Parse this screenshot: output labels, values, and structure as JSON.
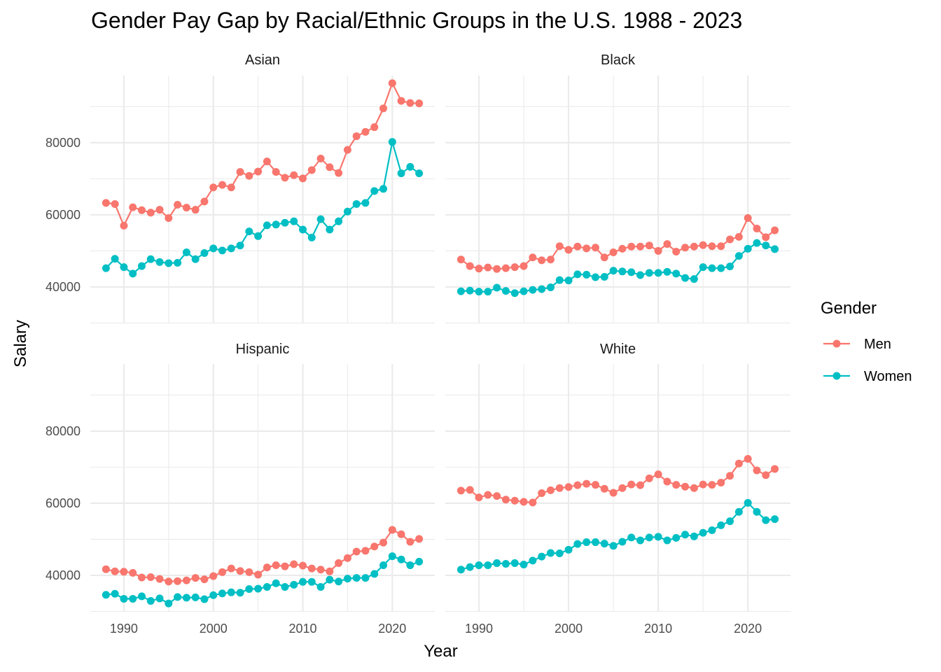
{
  "chart_data": {
    "type": "line",
    "title": "Gender Pay Gap by Racial/Ethnic Groups in the U.S. 1988 - 2023",
    "xlabel": "Year",
    "ylabel": "Salary",
    "xlim": [
      1986.25,
      2024.75
    ],
    "ylim": [
      29900,
      98600
    ],
    "x_ticks": [
      1990,
      2000,
      2010,
      2020
    ],
    "x_tick_labels": [
      "1990",
      "2000",
      "2010",
      "2020"
    ],
    "y_ticks": [
      40000,
      60000,
      80000
    ],
    "y_tick_labels": [
      "40000",
      "60000",
      "80000"
    ],
    "y_minor_ticks": [
      30000,
      50000,
      70000,
      90000
    ],
    "x_minor_ticks": [
      1985,
      1995,
      2005,
      2015
    ],
    "grid": true,
    "facets_layout": "2x2",
    "legend": {
      "title": "Gender",
      "position": "right",
      "entries": [
        {
          "label": "Men",
          "color": "#F8766D"
        },
        {
          "label": "Women",
          "color": "#00BFC4"
        }
      ]
    },
    "x": [
      1988,
      1989,
      1990,
      1991,
      1992,
      1993,
      1994,
      1995,
      1996,
      1997,
      1998,
      1999,
      2000,
      2001,
      2002,
      2003,
      2004,
      2005,
      2006,
      2007,
      2008,
      2009,
      2010,
      2011,
      2012,
      2013,
      2014,
      2015,
      2016,
      2017,
      2018,
      2019,
      2020,
      2021,
      2022,
      2023
    ],
    "facets": [
      {
        "label": "Asian",
        "series": [
          {
            "name": "Men",
            "color": "#F8766D",
            "values": [
              63300,
              63000,
              57000,
              62100,
              61300,
              60600,
              61400,
              59100,
              62800,
              62000,
              61400,
              63700,
              67600,
              68300,
              67600,
              71900,
              70800,
              72000,
              74800,
              71900,
              70300,
              71000,
              70100,
              72400,
              75600,
              73200,
              71600,
              78000,
              81800,
              83000,
              84300,
              89500,
              96500,
              91600,
              91000,
              90900
            ]
          },
          {
            "name": "Women",
            "color": "#00BFC4",
            "values": [
              45200,
              47800,
              45500,
              43700,
              45800,
              47700,
              46900,
              46600,
              46700,
              49600,
              47700,
              49400,
              50700,
              50100,
              50700,
              51500,
              55400,
              54100,
              57100,
              57300,
              57800,
              58200,
              55900,
              53700,
              58800,
              55900,
              58200,
              60900,
              63000,
              63300,
              66600,
              67200,
              80200,
              71500,
              73300,
              71500
            ]
          }
        ]
      },
      {
        "label": "Black",
        "series": [
          {
            "name": "Men",
            "color": "#F8766D",
            "values": [
              47600,
              45800,
              45100,
              45400,
              45000,
              45200,
              45500,
              45800,
              48200,
              47400,
              47600,
              51300,
              50300,
              51200,
              50700,
              50900,
              48200,
              49600,
              50600,
              51200,
              51200,
              51500,
              50000,
              51900,
              49800,
              50900,
              51200,
              51600,
              51300,
              51300,
              53200,
              53900,
              59100,
              56200,
              53800,
              55700
            ]
          },
          {
            "name": "Women",
            "color": "#00BFC4",
            "values": [
              38800,
              39000,
              38700,
              38700,
              39800,
              38900,
              38300,
              38800,
              39200,
              39400,
              39900,
              41900,
              41800,
              43500,
              43400,
              42700,
              42800,
              44500,
              44300,
              44100,
              43300,
              43900,
              43900,
              44200,
              43700,
              42500,
              42200,
              45500,
              45200,
              45200,
              45700,
              48600,
              50600,
              52200,
              51500,
              50500
            ]
          }
        ]
      },
      {
        "label": "Hispanic",
        "series": [
          {
            "name": "Men",
            "color": "#F8766D",
            "values": [
              41700,
              41100,
              41000,
              40700,
              39400,
              39500,
              39000,
              38300,
              38400,
              38600,
              39300,
              38900,
              39800,
              40900,
              41900,
              41200,
              40900,
              40200,
              42200,
              42800,
              42500,
              43100,
              42700,
              41900,
              41600,
              41100,
              43400,
              44800,
              46600,
              46800,
              48000,
              49100,
              52600,
              51400,
              49300,
              50100
            ]
          },
          {
            "name": "Women",
            "color": "#00BFC4",
            "values": [
              34600,
              34900,
              33500,
              33500,
              34200,
              32900,
              33600,
              32200,
              34000,
              33800,
              33900,
              33400,
              34500,
              35000,
              35300,
              35200,
              36200,
              36300,
              36800,
              37800,
              36800,
              37400,
              38200,
              38200,
              36800,
              38800,
              38300,
              39100,
              39300,
              39300,
              40400,
              42800,
              45300,
              44400,
              42800,
              43800
            ]
          }
        ]
      },
      {
        "label": "White",
        "series": [
          {
            "name": "Men",
            "color": "#F8766D",
            "values": [
              63500,
              63700,
              61600,
              62300,
              62000,
              61000,
              60700,
              60400,
              60200,
              62800,
              63600,
              64200,
              64500,
              65000,
              65400,
              65100,
              64000,
              62900,
              64200,
              65200,
              65000,
              66900,
              68000,
              66000,
              65100,
              64600,
              64200,
              65200,
              65100,
              65700,
              67600,
              71000,
              72300,
              69100,
              67800,
              69500
            ]
          },
          {
            "name": "Women",
            "color": "#00BFC4",
            "values": [
              41600,
              42300,
              42800,
              42800,
              43400,
              43200,
              43400,
              43000,
              44100,
              45200,
              46200,
              46100,
              47100,
              48700,
              49200,
              49200,
              48800,
              48200,
              49300,
              50500,
              49700,
              50500,
              50700,
              49700,
              50400,
              51300,
              50800,
              51800,
              52500,
              53900,
              55000,
              57600,
              60100,
              57600,
              55300,
              55600
            ]
          }
        ]
      }
    ]
  }
}
